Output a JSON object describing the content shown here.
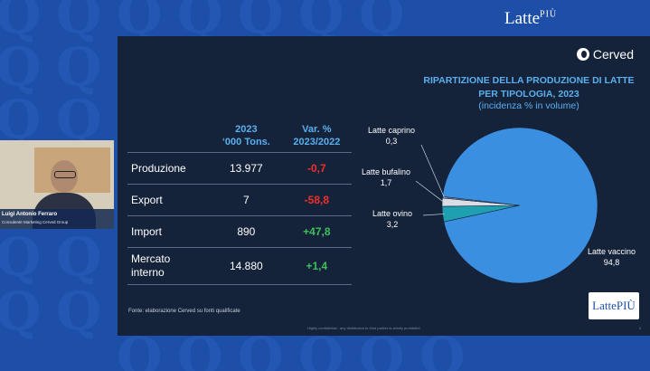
{
  "brand": {
    "name": "Latte",
    "sup": "PIÙ"
  },
  "slide": {
    "logo": "Cerved",
    "chart_title_line1": "RIPARTIZIONE DELLA PRODUZIONE DI LATTE",
    "chart_title_line2": "PER TIPOLOGIA, 2023",
    "chart_subtitle": "(incidenza % in volume)",
    "table": {
      "col2_line1": "2023",
      "col2_line2": "‘000 Tons.",
      "col3_line1": "Var. %",
      "col3_line2": "2023/2022",
      "rows": [
        {
          "label": "Produzione",
          "value": "13.977",
          "var": "-0,7"
        },
        {
          "label": "Export",
          "value": "7",
          "var": "-58,8"
        },
        {
          "label": "Import",
          "value": "890",
          "var": "+47,8"
        },
        {
          "label_line1": "Mercato",
          "label_line2": "interno",
          "value": "14.880",
          "var": "+1,4"
        }
      ]
    },
    "fonte": "Fonte: elaborazione Cerved su fonti qualificate",
    "confidential": "Highly confidential - any distribution to third parties is strictly prohibited",
    "page_number": "4"
  },
  "chart_data": {
    "type": "pie",
    "title": "RIPARTIZIONE DELLA PRODUZIONE DI LATTE PER TIPOLOGIA, 2023",
    "subtitle": "(incidenza % in volume)",
    "slices": [
      {
        "name": "Latte vaccino",
        "value": 94.8,
        "label": "94,8",
        "color": "#3b8fe0"
      },
      {
        "name": "Latte ovino",
        "value": 3.2,
        "label": "3,2",
        "color": "#1fa0b0"
      },
      {
        "name": "Latte bufalino",
        "value": 1.7,
        "label": "1,7",
        "color": "#d8dde6"
      },
      {
        "name": "Latte caprino",
        "value": 0.3,
        "label": "0,3",
        "color": "#7a8ba8"
      }
    ]
  },
  "speaker": {
    "name": "Luigi Antonio Ferraro",
    "role": "Consulente Marketing Cerved Group"
  },
  "badge": {
    "text": "LattePIÙ"
  },
  "colors": {
    "background": "#1d4fa8",
    "slide": "#14223a",
    "accent": "#5ab0ee",
    "negative": "#f0302b",
    "positive": "#3fbf5a"
  }
}
